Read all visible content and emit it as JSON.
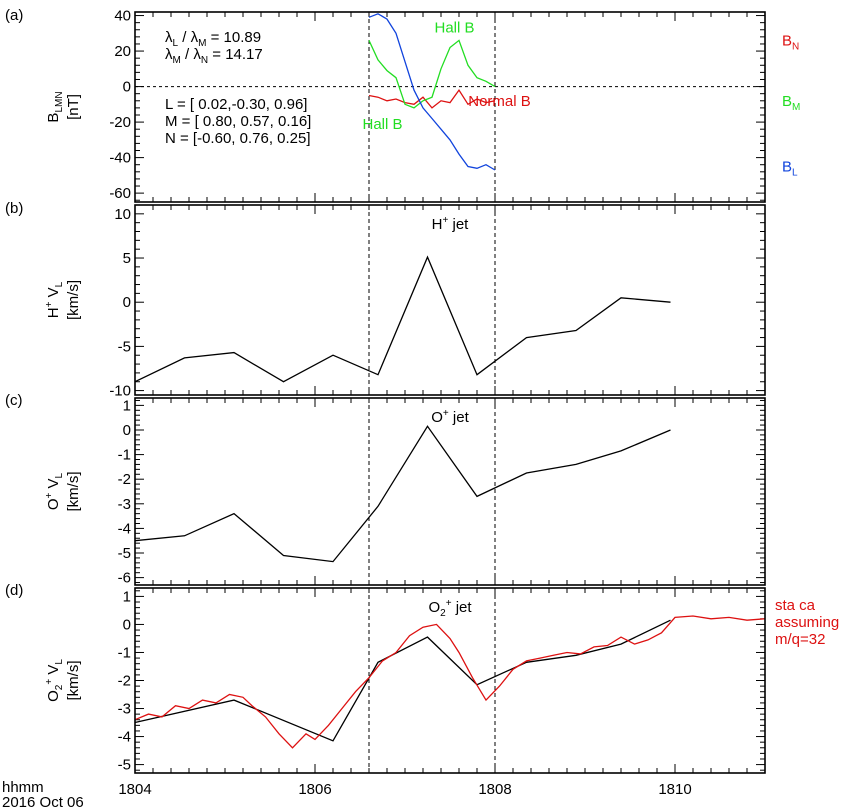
{
  "chart_data": [
    {
      "panel_label": "(a)",
      "type": "line",
      "ylabel_lines": [
        "B",
        "[nT]"
      ],
      "ylabel_sub": "LMN",
      "ylim": [
        -65,
        42
      ],
      "yticks": [
        40,
        20,
        0,
        -20,
        -40,
        -60
      ],
      "ytick_labels": [
        "40",
        "20",
        "0",
        "-20",
        "-40",
        "-60"
      ],
      "zero_line": true,
      "eigen_lines": [
        {
          "a": "λ",
          "a_sub": "L",
          "b": "λ",
          "b_sub": "M",
          "value": "= 10.89"
        },
        {
          "a": "λ",
          "a_sub": "M",
          "b": "λ",
          "b_sub": "N",
          "value": "= 14.17"
        }
      ],
      "vector_lines": [
        "L = [ 0.02,-0.30, 0.96]",
        "M = [ 0.80, 0.57, 0.16]",
        "N = [-0.60, 0.76, 0.25]"
      ],
      "annotations": [
        {
          "text": "Hall B",
          "color": "#22dd22",
          "at": [
            1807.55,
            30.5
          ]
        },
        {
          "text": "Hall B",
          "color": "#22dd22",
          "at": [
            1806.75,
            -24
          ]
        },
        {
          "text": "Normal B",
          "color": "#dd1111",
          "at": [
            1808.05,
            -11
          ]
        }
      ],
      "series": [
        {
          "name": "B",
          "sub": "N",
          "color": "#dd1111",
          "side_y": 26,
          "x": [
            1806.6,
            1806.7,
            1806.8,
            1806.9,
            1807.0,
            1807.1,
            1807.2,
            1807.3,
            1807.4,
            1807.5,
            1807.6,
            1807.7,
            1807.8,
            1807.9,
            1808.0
          ],
          "y": [
            -5,
            -6,
            -8,
            -7,
            -9,
            -10,
            -6,
            -12,
            -8,
            -9,
            -2,
            -10,
            -7,
            -9,
            -8
          ]
        },
        {
          "name": "B",
          "sub": "M",
          "color": "#22dd22",
          "side_y": -8,
          "x": [
            1806.6,
            1806.7,
            1806.8,
            1806.9,
            1807.0,
            1807.1,
            1807.2,
            1807.3,
            1807.4,
            1807.5,
            1807.6,
            1807.7,
            1807.8,
            1807.9,
            1808.0
          ],
          "y": [
            26,
            15,
            9,
            5,
            -10,
            -12,
            -8,
            -6,
            10,
            22,
            26,
            12,
            5,
            3,
            0
          ]
        },
        {
          "name": "B",
          "sub": "L",
          "color": "#1144dd",
          "side_y": -45,
          "x": [
            1806.6,
            1806.7,
            1806.8,
            1806.9,
            1807.0,
            1807.1,
            1807.2,
            1807.3,
            1807.4,
            1807.5,
            1807.6,
            1807.7,
            1807.8,
            1807.9,
            1808.0
          ],
          "y": [
            39,
            41,
            38,
            30,
            14,
            -2,
            -12,
            -18,
            -24,
            -30,
            -38,
            -45,
            -46,
            -44,
            -47
          ]
        }
      ]
    },
    {
      "panel_label": "(b)",
      "type": "line",
      "ylabel_lines": [
        "H",
        "[km/s]"
      ],
      "ylabel_sup": "+",
      "ylabel_suffix": " V",
      "ylabel_sub": "L",
      "ylim": [
        -10.5,
        11
      ],
      "yticks": [
        10,
        5,
        0,
        -5,
        -10
      ],
      "ytick_labels": [
        "10",
        "5",
        "0",
        "-5",
        "-10"
      ],
      "title": {
        "text": "H",
        "sup": "+",
        "rest": " jet"
      },
      "series": [
        {
          "name": "",
          "color": "#000000",
          "x": [
            1804.0,
            1804.55,
            1805.1,
            1805.65,
            1806.2,
            1806.7,
            1807.25,
            1807.8,
            1808.35,
            1808.9,
            1809.4,
            1809.95
          ],
          "y": [
            -9,
            -6.3,
            -5.7,
            -9,
            -6,
            -8.2,
            5.1,
            -8.2,
            -4,
            -3.2,
            0.5,
            0
          ]
        }
      ]
    },
    {
      "panel_label": "(c)",
      "type": "line",
      "ylabel_lines": [
        "O",
        "[km/s]"
      ],
      "ylabel_sup": "+",
      "ylabel_suffix": " V",
      "ylabel_sub": "L",
      "ylim": [
        -6.3,
        1.3
      ],
      "yticks": [
        1,
        0,
        -1,
        -2,
        -3,
        -4,
        -5,
        -6
      ],
      "ytick_labels": [
        "1",
        "0",
        "-1",
        "-2",
        "-3",
        "-4",
        "-5",
        "-6"
      ],
      "title": {
        "text": "O",
        "sup": "+",
        "rest": " jet"
      },
      "series": [
        {
          "name": "",
          "color": "#000000",
          "x": [
            1804.0,
            1804.55,
            1805.1,
            1805.65,
            1806.2,
            1806.7,
            1807.25,
            1807.8,
            1808.35,
            1808.9,
            1809.4,
            1809.95
          ],
          "y": [
            -4.5,
            -4.3,
            -3.4,
            -5.1,
            -5.35,
            -3.1,
            0.15,
            -2.7,
            -1.75,
            -1.4,
            -0.85,
            0
          ]
        }
      ]
    },
    {
      "panel_label": "(d)",
      "type": "line",
      "ylabel_lines": [
        "O",
        "[km/s]"
      ],
      "ylabel_sub1": "2",
      "ylabel_sup": "+",
      "ylabel_suffix": " V",
      "ylabel_sub": "L",
      "ylim": [
        -5.3,
        1.3
      ],
      "yticks": [
        1,
        0,
        -1,
        -2,
        -3,
        -4,
        -5
      ],
      "ytick_labels": [
        "1",
        "0",
        "-1",
        "-2",
        "-3",
        "-4",
        "-5"
      ],
      "title": {
        "text": "O",
        "sub": "2",
        "sup": "+",
        "rest": " jet"
      },
      "side_note": [
        "sta ca",
        "assuming",
        "m/q=32"
      ],
      "series": [
        {
          "name": "",
          "color": "#000000",
          "x": [
            1804.0,
            1805.1,
            1806.2,
            1806.7,
            1807.25,
            1807.8,
            1808.35,
            1808.9,
            1809.4,
            1809.95
          ],
          "y": [
            -3.5,
            -2.7,
            -4.15,
            -1.35,
            -0.45,
            -2.15,
            -1.35,
            -1.1,
            -0.7,
            0.15
          ]
        },
        {
          "name": "",
          "color": "#dd1111",
          "x": [
            1804.0,
            1804.15,
            1804.3,
            1804.45,
            1804.6,
            1804.75,
            1804.9,
            1805.05,
            1805.2,
            1805.3,
            1805.45,
            1805.6,
            1805.75,
            1805.9,
            1806.0,
            1806.15,
            1806.3,
            1806.45,
            1806.6,
            1806.75,
            1806.9,
            1807.05,
            1807.2,
            1807.35,
            1807.5,
            1807.6,
            1807.75,
            1807.9,
            1808.05,
            1808.2,
            1808.35,
            1808.5,
            1808.65,
            1808.8,
            1808.95,
            1809.1,
            1809.25,
            1809.4,
            1809.55,
            1809.7,
            1809.85,
            1810.0,
            1810.2,
            1810.4,
            1810.6,
            1810.8,
            1811.0
          ],
          "y": [
            -3.4,
            -3.2,
            -3.3,
            -2.9,
            -3.0,
            -2.7,
            -2.8,
            -2.5,
            -2.6,
            -2.9,
            -3.3,
            -3.9,
            -4.4,
            -3.9,
            -4.1,
            -3.6,
            -3.0,
            -2.4,
            -1.9,
            -1.3,
            -1.0,
            -0.4,
            -0.1,
            0.0,
            -0.5,
            -1.0,
            -1.9,
            -2.7,
            -2.2,
            -1.6,
            -1.3,
            -1.2,
            -1.1,
            -1.0,
            -1.05,
            -0.8,
            -0.75,
            -0.45,
            -0.7,
            -0.55,
            -0.3,
            0.25,
            0.3,
            0.2,
            0.25,
            0.15,
            0.2
          ]
        }
      ]
    }
  ],
  "x_axis": {
    "xlim": [
      1804,
      1811
    ],
    "major_ticks": [
      1804,
      1806,
      1808,
      1810
    ],
    "tick_labels": [
      "1804",
      "1806",
      "1808",
      "1810"
    ],
    "label_lines": [
      "hhmm",
      "2016 Oct 06"
    ]
  },
  "guide_lines_x": [
    1806.6,
    1808.0
  ]
}
